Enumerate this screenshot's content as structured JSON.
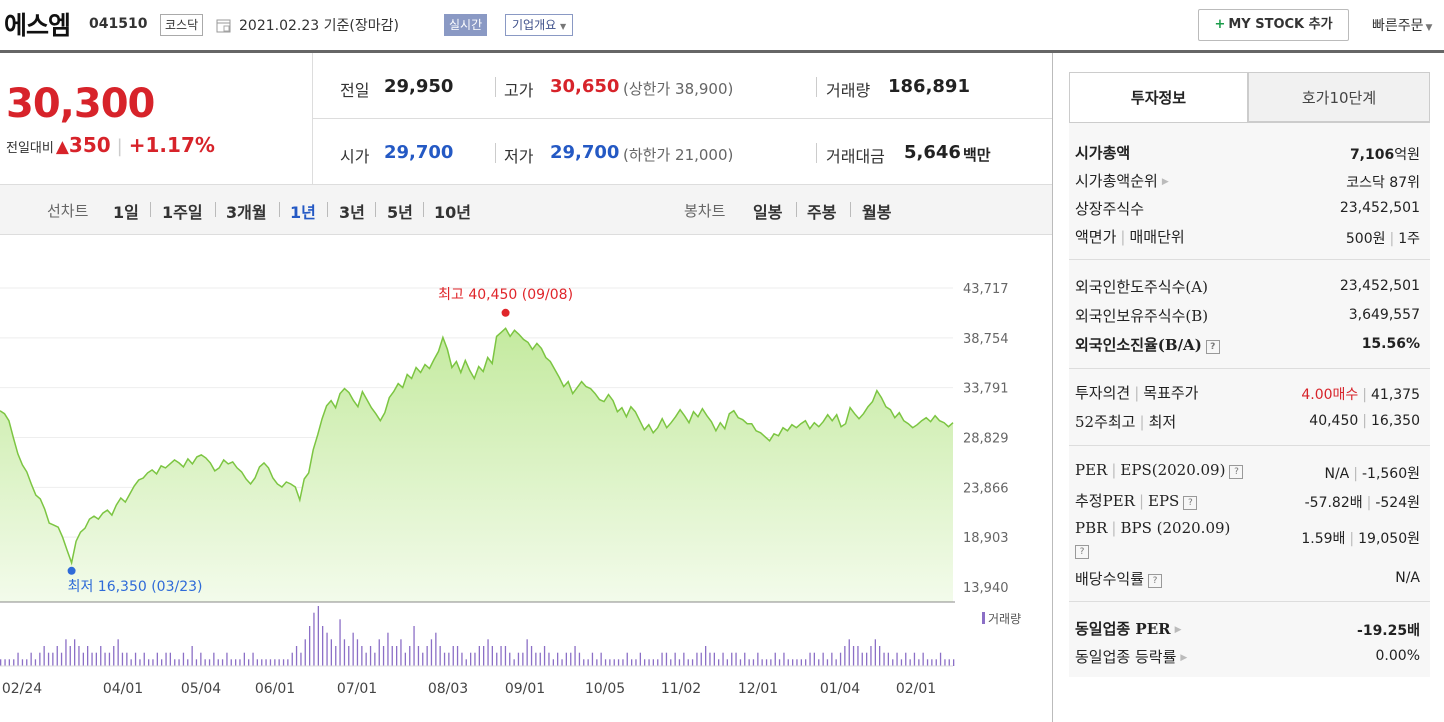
{
  "header": {
    "company_name": "에스엠",
    "company_code": "041510",
    "market": "코스닥",
    "date_text": "2021.02.23  기준(장마감)",
    "realtime_label": "실시간",
    "overview_label": "기업개요",
    "mystock_label": "MY STOCK 추가",
    "quick_order_label": "빠른주문"
  },
  "price": {
    "current": "30,300",
    "change_label": "전일대비",
    "change_amount": "350",
    "change_pct": "+1.17%"
  },
  "quotes": {
    "prev_close_label": "전일",
    "prev_close": "29,950",
    "high_label": "고가",
    "high": "30,650",
    "upper_limit": "(상한가 38,900)",
    "volume_label": "거래량",
    "volume": "186,891",
    "open_label": "시가",
    "open": "29,700",
    "low_label": "저가",
    "low": "29,700",
    "lower_limit": "(하한가 21,000)",
    "value_label": "거래대금",
    "value": "5,646",
    "value_unit": "백만"
  },
  "periods": {
    "line_chart_label": "선차트",
    "line_items": [
      "1일",
      "1주일",
      "3개월",
      "1년",
      "3년",
      "5년",
      "10년"
    ],
    "active": "1년",
    "candle_chart_label": "봉차트",
    "candle_items": [
      "일봉",
      "주봉",
      "월봉"
    ]
  },
  "chart_data": {
    "type": "area",
    "x_ticks": [
      "02/24",
      "04/01",
      "05/04",
      "06/01",
      "07/01",
      "08/03",
      "09/01",
      "10/05",
      "11/02",
      "12/01",
      "01/04",
      "02/01"
    ],
    "y_ticks": [
      43717,
      38754,
      33791,
      28829,
      23866,
      18903,
      13940
    ],
    "y_tick_labels": [
      "43,717",
      "38,754",
      "33,791",
      "28,829",
      "23,866",
      "18,903",
      "13,940"
    ],
    "ylim": [
      13940,
      43717
    ],
    "max_label": "최고 40,450 (09/08)",
    "min_label": "최저 16,350 (03/23)",
    "max_value": 40450,
    "min_value": 16350,
    "volume_legend": "거래량",
    "colors": {
      "line": "#7cc542",
      "fill_top": "#cdeeb0",
      "fill_bottom": "#f2fbea",
      "max": "#e0262b",
      "min": "#2f6bd8",
      "volume": "#8b6fc6"
    },
    "series": [
      {
        "values": [
          31500,
          31200,
          30500,
          28800,
          27200,
          26100,
          25400,
          24200,
          23100,
          22700,
          21700,
          20300,
          20100,
          19900,
          18900,
          17600,
          16350,
          18500,
          19400,
          19800,
          20700,
          21000,
          20700,
          21300,
          21600,
          21100,
          22100,
          22800,
          22400,
          23200,
          24000,
          24600,
          24800,
          25300,
          25600,
          25200,
          26000,
          25800,
          26200,
          26600,
          26300,
          25900,
          26700,
          26200,
          26900,
          27100,
          26800,
          26300,
          25500,
          25800,
          26600,
          26200,
          26400,
          25800,
          25400,
          24700,
          24200,
          24800,
          25900,
          26300,
          25800,
          24800,
          24200,
          23900,
          24400,
          24200,
          23900,
          22600,
          24700,
          25300,
          27600,
          29100,
          30700,
          32000,
          32500,
          31800,
          33200,
          33700,
          33300,
          32500,
          31900,
          33400,
          32600,
          31800,
          31200,
          30500,
          31300,
          32800,
          33400,
          34200,
          33800,
          35100,
          34700,
          35800,
          35300,
          36100,
          35700,
          36600,
          37400,
          38800,
          37600,
          35800,
          36400,
          35300,
          36500,
          35500,
          34700,
          35900,
          35400,
          36800,
          36200,
          38900,
          39300,
          39700,
          38900,
          39500,
          39100,
          38600,
          38300,
          37600,
          38200,
          37700,
          36800,
          36400,
          35600,
          34800,
          33900,
          34400,
          33200,
          33800,
          34400,
          33900,
          33700,
          33200,
          32600,
          32400,
          33100,
          32500,
          31400,
          31800,
          30900,
          31900,
          31400,
          30500,
          29600,
          30100,
          29300,
          29800,
          30700,
          29800,
          30300,
          30900,
          31600,
          31000,
          30300,
          31400,
          30900,
          31700,
          31000,
          30400,
          29500,
          30300,
          29700,
          31200,
          31500,
          30800,
          30600,
          30200,
          30200,
          29500,
          29300,
          28900,
          28500,
          29200,
          29000,
          29800,
          29500,
          30100,
          29800,
          30200,
          30500,
          29700,
          30300,
          29900,
          30400,
          31100,
          30500,
          31100,
          29900,
          30200,
          31800,
          31200,
          30700,
          31200,
          31900,
          32400,
          33500,
          32800,
          31900,
          31600,
          30800,
          31300,
          30500,
          30200,
          29800,
          30100,
          30500,
          30800,
          30400,
          31000,
          30500,
          30300,
          29900,
          30300
        ]
      }
    ],
    "volume": [
      1,
      1,
      1,
      1,
      2,
      1,
      1,
      2,
      1,
      2,
      3,
      2,
      2,
      3,
      2,
      4,
      3,
      4,
      3,
      2,
      3,
      2,
      2,
      3,
      2,
      2,
      3,
      4,
      2,
      2,
      1,
      2,
      1,
      2,
      1,
      1,
      2,
      1,
      2,
      2,
      1,
      1,
      2,
      1,
      3,
      1,
      2,
      1,
      1,
      2,
      1,
      1,
      2,
      1,
      1,
      1,
      2,
      1,
      2,
      1,
      1,
      1,
      1,
      1,
      1,
      1,
      1,
      2,
      3,
      2,
      4,
      6,
      8,
      9,
      6,
      5,
      4,
      3,
      7,
      4,
      3,
      5,
      4,
      3,
      2,
      3,
      2,
      4,
      3,
      5,
      3,
      3,
      4,
      2,
      3,
      6,
      3,
      2,
      3,
      4,
      5,
      3,
      2,
      2,
      3,
      3,
      2,
      1,
      2,
      2,
      3,
      3,
      4,
      3,
      2,
      3,
      3,
      2,
      1,
      2,
      2,
      4,
      3,
      2,
      2,
      3,
      2,
      1,
      2,
      1,
      2,
      2,
      3,
      2,
      1,
      1,
      2,
      1,
      2,
      1,
      1,
      1,
      1,
      1,
      2,
      1,
      1,
      2,
      1,
      1,
      1,
      1,
      2,
      2,
      1,
      2,
      1,
      2,
      1,
      1,
      2,
      2,
      3,
      2,
      2,
      1,
      2,
      1,
      2,
      2,
      1,
      2,
      1,
      1,
      2,
      1,
      1,
      1,
      2,
      1,
      2,
      1,
      1,
      1,
      1,
      1,
      2,
      2,
      1,
      2,
      1,
      2,
      1,
      2,
      3,
      4,
      3,
      3,
      2,
      2,
      3,
      4,
      3,
      2,
      2,
      1,
      2,
      1,
      2,
      1,
      2,
      1,
      2,
      1,
      1,
      1,
      2,
      1,
      1,
      1
    ]
  },
  "right_panel": {
    "tabs": [
      "투자정보",
      "호가10단계"
    ],
    "market_cap_label": "시가총액",
    "market_cap_value": "7,106",
    "market_cap_unit": "억원",
    "cap_rank_label": "시가총액순위",
    "cap_rank_value": "코스닥 87위",
    "shares_label": "상장주식수",
    "shares_value": "23,452,501",
    "face_value_label": "액면가",
    "trade_unit_label": "매매단위",
    "face_value": "500원",
    "trade_unit": "1주",
    "foreign_limit_label": "외국인한도주식수(A)",
    "foreign_limit_value": "23,452,501",
    "foreign_held_label": "외국인보유주식수(B)",
    "foreign_held_value": "3,649,557",
    "foreign_ratio_label": "외국인소진율(B/A)",
    "foreign_ratio_value": "15.56%",
    "opinion_label": "투자의견",
    "target_label": "목표주가",
    "opinion_value": "4.00매수",
    "target_value": "41,375",
    "week52_high_label": "52주최고",
    "week52_low_label": "최저",
    "week52_high": "40,450",
    "week52_low": "16,350",
    "per_label": "PER",
    "eps_label": "EPS(2020.09)",
    "per_value": "N/A",
    "eps_value": "-1,560원",
    "est_per_label": "추정PER",
    "est_eps_label": "EPS",
    "est_per_value": "-57.82배",
    "est_eps_value": "-524원",
    "pbr_label": "PBR",
    "bps_label": "BPS (2020.09)",
    "pbr_value": "1.59배",
    "bps_value": "19,050원",
    "dividend_label": "배당수익률",
    "dividend_value": "N/A",
    "sector_per_label": "동일업종 PER",
    "sector_per_value": "-19.25배",
    "sector_change_label": "동일업종 등락률",
    "sector_change_value": "0.00%"
  }
}
